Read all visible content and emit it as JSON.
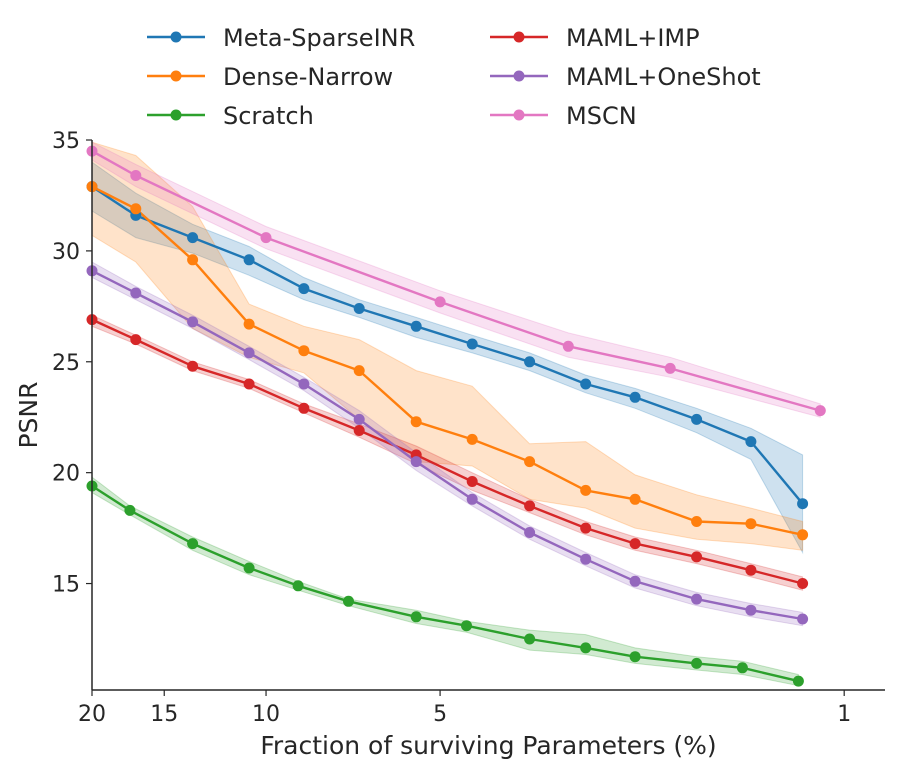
{
  "chart_data": {
    "type": "line",
    "xlabel": "Fraction of surviving Parameters (%)",
    "ylabel": "PSNR",
    "x_scale": "log",
    "x_inverted": true,
    "xlim": [
      20,
      0.85
    ],
    "ylim": [
      10.2,
      35
    ],
    "xticks": [
      20,
      15,
      10,
      5,
      1
    ],
    "yticks": [
      15,
      20,
      25,
      30,
      35
    ],
    "grid": false,
    "legend": {
      "placement": "top",
      "columns": 2
    },
    "series": [
      {
        "name": "Meta-SparseINR",
        "color": "#1f77b4",
        "points": [
          [
            20,
            32.9
          ],
          [
            16.8,
            31.6
          ],
          [
            13.4,
            30.6
          ],
          [
            10.7,
            29.6
          ],
          [
            8.6,
            28.3
          ],
          [
            6.9,
            27.4
          ],
          [
            5.5,
            26.6
          ],
          [
            4.4,
            25.8
          ],
          [
            3.5,
            25.0
          ],
          [
            2.8,
            24.0
          ],
          [
            2.3,
            23.4
          ],
          [
            1.8,
            22.4
          ],
          [
            1.45,
            21.4
          ],
          [
            1.18,
            18.6
          ]
        ],
        "band": [
          [
            20,
            31.8,
            34.0
          ],
          [
            16.8,
            30.6,
            32.6
          ],
          [
            13.4,
            29.9,
            31.2
          ],
          [
            10.7,
            28.9,
            30.2
          ],
          [
            8.6,
            27.8,
            28.8
          ],
          [
            6.9,
            27.0,
            27.8
          ],
          [
            5.5,
            26.1,
            27.0
          ],
          [
            4.4,
            25.4,
            26.2
          ],
          [
            3.5,
            24.6,
            25.4
          ],
          [
            2.8,
            23.6,
            24.4
          ],
          [
            2.3,
            22.9,
            23.8
          ],
          [
            1.8,
            21.8,
            22.9
          ],
          [
            1.45,
            20.6,
            22.0
          ],
          [
            1.18,
            16.4,
            20.8
          ]
        ]
      },
      {
        "name": "Dense-Narrow",
        "color": "#ff7f0e",
        "points": [
          [
            20,
            32.9
          ],
          [
            16.8,
            31.9
          ],
          [
            13.4,
            29.6
          ],
          [
            10.7,
            26.7
          ],
          [
            8.6,
            25.5
          ],
          [
            6.9,
            24.6
          ],
          [
            5.5,
            22.3
          ],
          [
            4.4,
            21.5
          ],
          [
            3.5,
            20.5
          ],
          [
            2.8,
            19.2
          ],
          [
            2.3,
            18.8
          ],
          [
            1.8,
            17.8
          ],
          [
            1.45,
            17.7
          ],
          [
            1.18,
            17.2
          ]
        ],
        "band": [
          [
            20,
            30.7,
            34.9
          ],
          [
            16.8,
            29.5,
            34.3
          ],
          [
            13.4,
            26.5,
            32.0
          ],
          [
            10.7,
            25.2,
            27.6
          ],
          [
            8.6,
            24.5,
            26.6
          ],
          [
            6.9,
            22.4,
            26.0
          ],
          [
            5.5,
            20.5,
            24.6
          ],
          [
            4.4,
            20.3,
            23.9
          ],
          [
            3.5,
            18.8,
            21.3
          ],
          [
            2.8,
            18.4,
            21.4
          ],
          [
            2.3,
            17.5,
            19.9
          ],
          [
            1.8,
            17.0,
            19.0
          ],
          [
            1.45,
            16.8,
            18.4
          ],
          [
            1.18,
            16.5,
            17.8
          ]
        ]
      },
      {
        "name": "Scratch",
        "color": "#2ca02c",
        "points": [
          [
            20,
            19.4
          ],
          [
            17.2,
            18.3
          ],
          [
            13.4,
            16.8
          ],
          [
            10.7,
            15.7
          ],
          [
            8.8,
            14.9
          ],
          [
            7.2,
            14.2
          ],
          [
            5.5,
            13.5
          ],
          [
            4.5,
            13.1
          ],
          [
            3.5,
            12.5
          ],
          [
            2.8,
            12.1
          ],
          [
            2.3,
            11.7
          ],
          [
            1.8,
            11.4
          ],
          [
            1.5,
            11.2
          ],
          [
            1.2,
            10.6
          ]
        ],
        "band": [
          [
            20,
            19.1,
            19.8
          ],
          [
            17.2,
            18.1,
            18.5
          ],
          [
            13.4,
            16.5,
            17.1
          ],
          [
            10.7,
            15.4,
            16.0
          ],
          [
            8.8,
            14.7,
            15.1
          ],
          [
            7.2,
            14.0,
            14.3
          ],
          [
            5.5,
            13.2,
            13.8
          ],
          [
            4.5,
            12.8,
            13.3
          ],
          [
            3.5,
            12.0,
            12.9
          ],
          [
            2.8,
            11.8,
            12.7
          ],
          [
            2.3,
            11.4,
            12.1
          ],
          [
            1.8,
            11.1,
            11.7
          ],
          [
            1.5,
            10.9,
            11.5
          ],
          [
            1.2,
            10.4,
            10.9
          ]
        ]
      },
      {
        "name": "MAML+IMP",
        "color": "#d62728",
        "points": [
          [
            20,
            26.9
          ],
          [
            16.8,
            26.0
          ],
          [
            13.4,
            24.8
          ],
          [
            10.7,
            24.0
          ],
          [
            8.6,
            22.9
          ],
          [
            6.9,
            21.9
          ],
          [
            5.5,
            20.8
          ],
          [
            4.4,
            19.6
          ],
          [
            3.5,
            18.5
          ],
          [
            2.8,
            17.5
          ],
          [
            2.3,
            16.8
          ],
          [
            1.8,
            16.2
          ],
          [
            1.45,
            15.6
          ],
          [
            1.18,
            15.0
          ]
        ],
        "band": [
          [
            20,
            26.6,
            27.1
          ],
          [
            16.8,
            25.8,
            26.2
          ],
          [
            13.4,
            24.6,
            25.0
          ],
          [
            10.7,
            23.8,
            24.2
          ],
          [
            8.6,
            22.7,
            23.1
          ],
          [
            6.9,
            21.6,
            22.2
          ],
          [
            5.5,
            20.4,
            21.2
          ],
          [
            4.4,
            19.2,
            20.0
          ],
          [
            3.5,
            18.2,
            18.8
          ],
          [
            2.8,
            17.2,
            17.8
          ],
          [
            2.3,
            16.5,
            17.1
          ],
          [
            1.8,
            15.9,
            16.5
          ],
          [
            1.45,
            15.3,
            15.9
          ],
          [
            1.18,
            14.7,
            15.3
          ]
        ]
      },
      {
        "name": "MAML+OneShot",
        "color": "#9467bd",
        "points": [
          [
            20,
            29.1
          ],
          [
            16.8,
            28.1
          ],
          [
            13.4,
            26.8
          ],
          [
            10.7,
            25.4
          ],
          [
            8.6,
            24.0
          ],
          [
            6.9,
            22.4
          ],
          [
            5.5,
            20.5
          ],
          [
            4.4,
            18.8
          ],
          [
            3.5,
            17.3
          ],
          [
            2.8,
            16.1
          ],
          [
            2.3,
            15.1
          ],
          [
            1.8,
            14.3
          ],
          [
            1.45,
            13.8
          ],
          [
            1.18,
            13.4
          ]
        ],
        "band": [
          [
            20,
            28.8,
            29.5
          ],
          [
            16.8,
            27.8,
            28.4
          ],
          [
            13.4,
            26.5,
            27.1
          ],
          [
            10.7,
            25.1,
            25.7
          ],
          [
            8.6,
            23.7,
            24.3
          ],
          [
            6.9,
            22.0,
            22.8
          ],
          [
            5.5,
            20.1,
            20.9
          ],
          [
            4.4,
            18.5,
            19.1
          ],
          [
            3.5,
            17.0,
            17.6
          ],
          [
            2.8,
            15.8,
            16.4
          ],
          [
            2.3,
            14.8,
            15.4
          ],
          [
            1.8,
            14.0,
            14.6
          ],
          [
            1.45,
            13.5,
            14.1
          ],
          [
            1.18,
            13.1,
            13.7
          ]
        ]
      },
      {
        "name": "MSCN",
        "color": "#e377c2",
        "points": [
          [
            20,
            34.5
          ],
          [
            16.8,
            33.4
          ],
          [
            10.0,
            30.6
          ],
          [
            5.0,
            27.7
          ],
          [
            3.0,
            25.7
          ],
          [
            2.0,
            24.7
          ],
          [
            1.1,
            22.8
          ]
        ],
        "band": [
          [
            20,
            34.1,
            34.9
          ],
          [
            16.8,
            32.9,
            33.9
          ],
          [
            10.0,
            30.1,
            31.1
          ],
          [
            5.0,
            27.2,
            28.2
          ],
          [
            3.0,
            25.2,
            26.3
          ],
          [
            2.0,
            24.3,
            25.2
          ],
          [
            1.1,
            22.5,
            23.1
          ]
        ]
      }
    ]
  }
}
